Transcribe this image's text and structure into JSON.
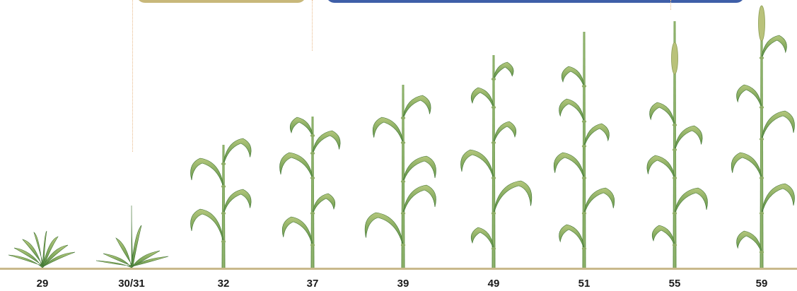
{
  "stages": [
    "29",
    "30/31",
    "32",
    "37",
    "39",
    "49",
    "51",
    "55",
    "59"
  ],
  "colors": {
    "band_tan": "#c8b87a",
    "band_blue": "#3f5fa8",
    "ground": "#c9b98c",
    "stem": "#6f9a52",
    "leaf_dark": "#4f8a3e",
    "leaf_light": "#a9bf72",
    "divider": "#e8b887"
  }
}
